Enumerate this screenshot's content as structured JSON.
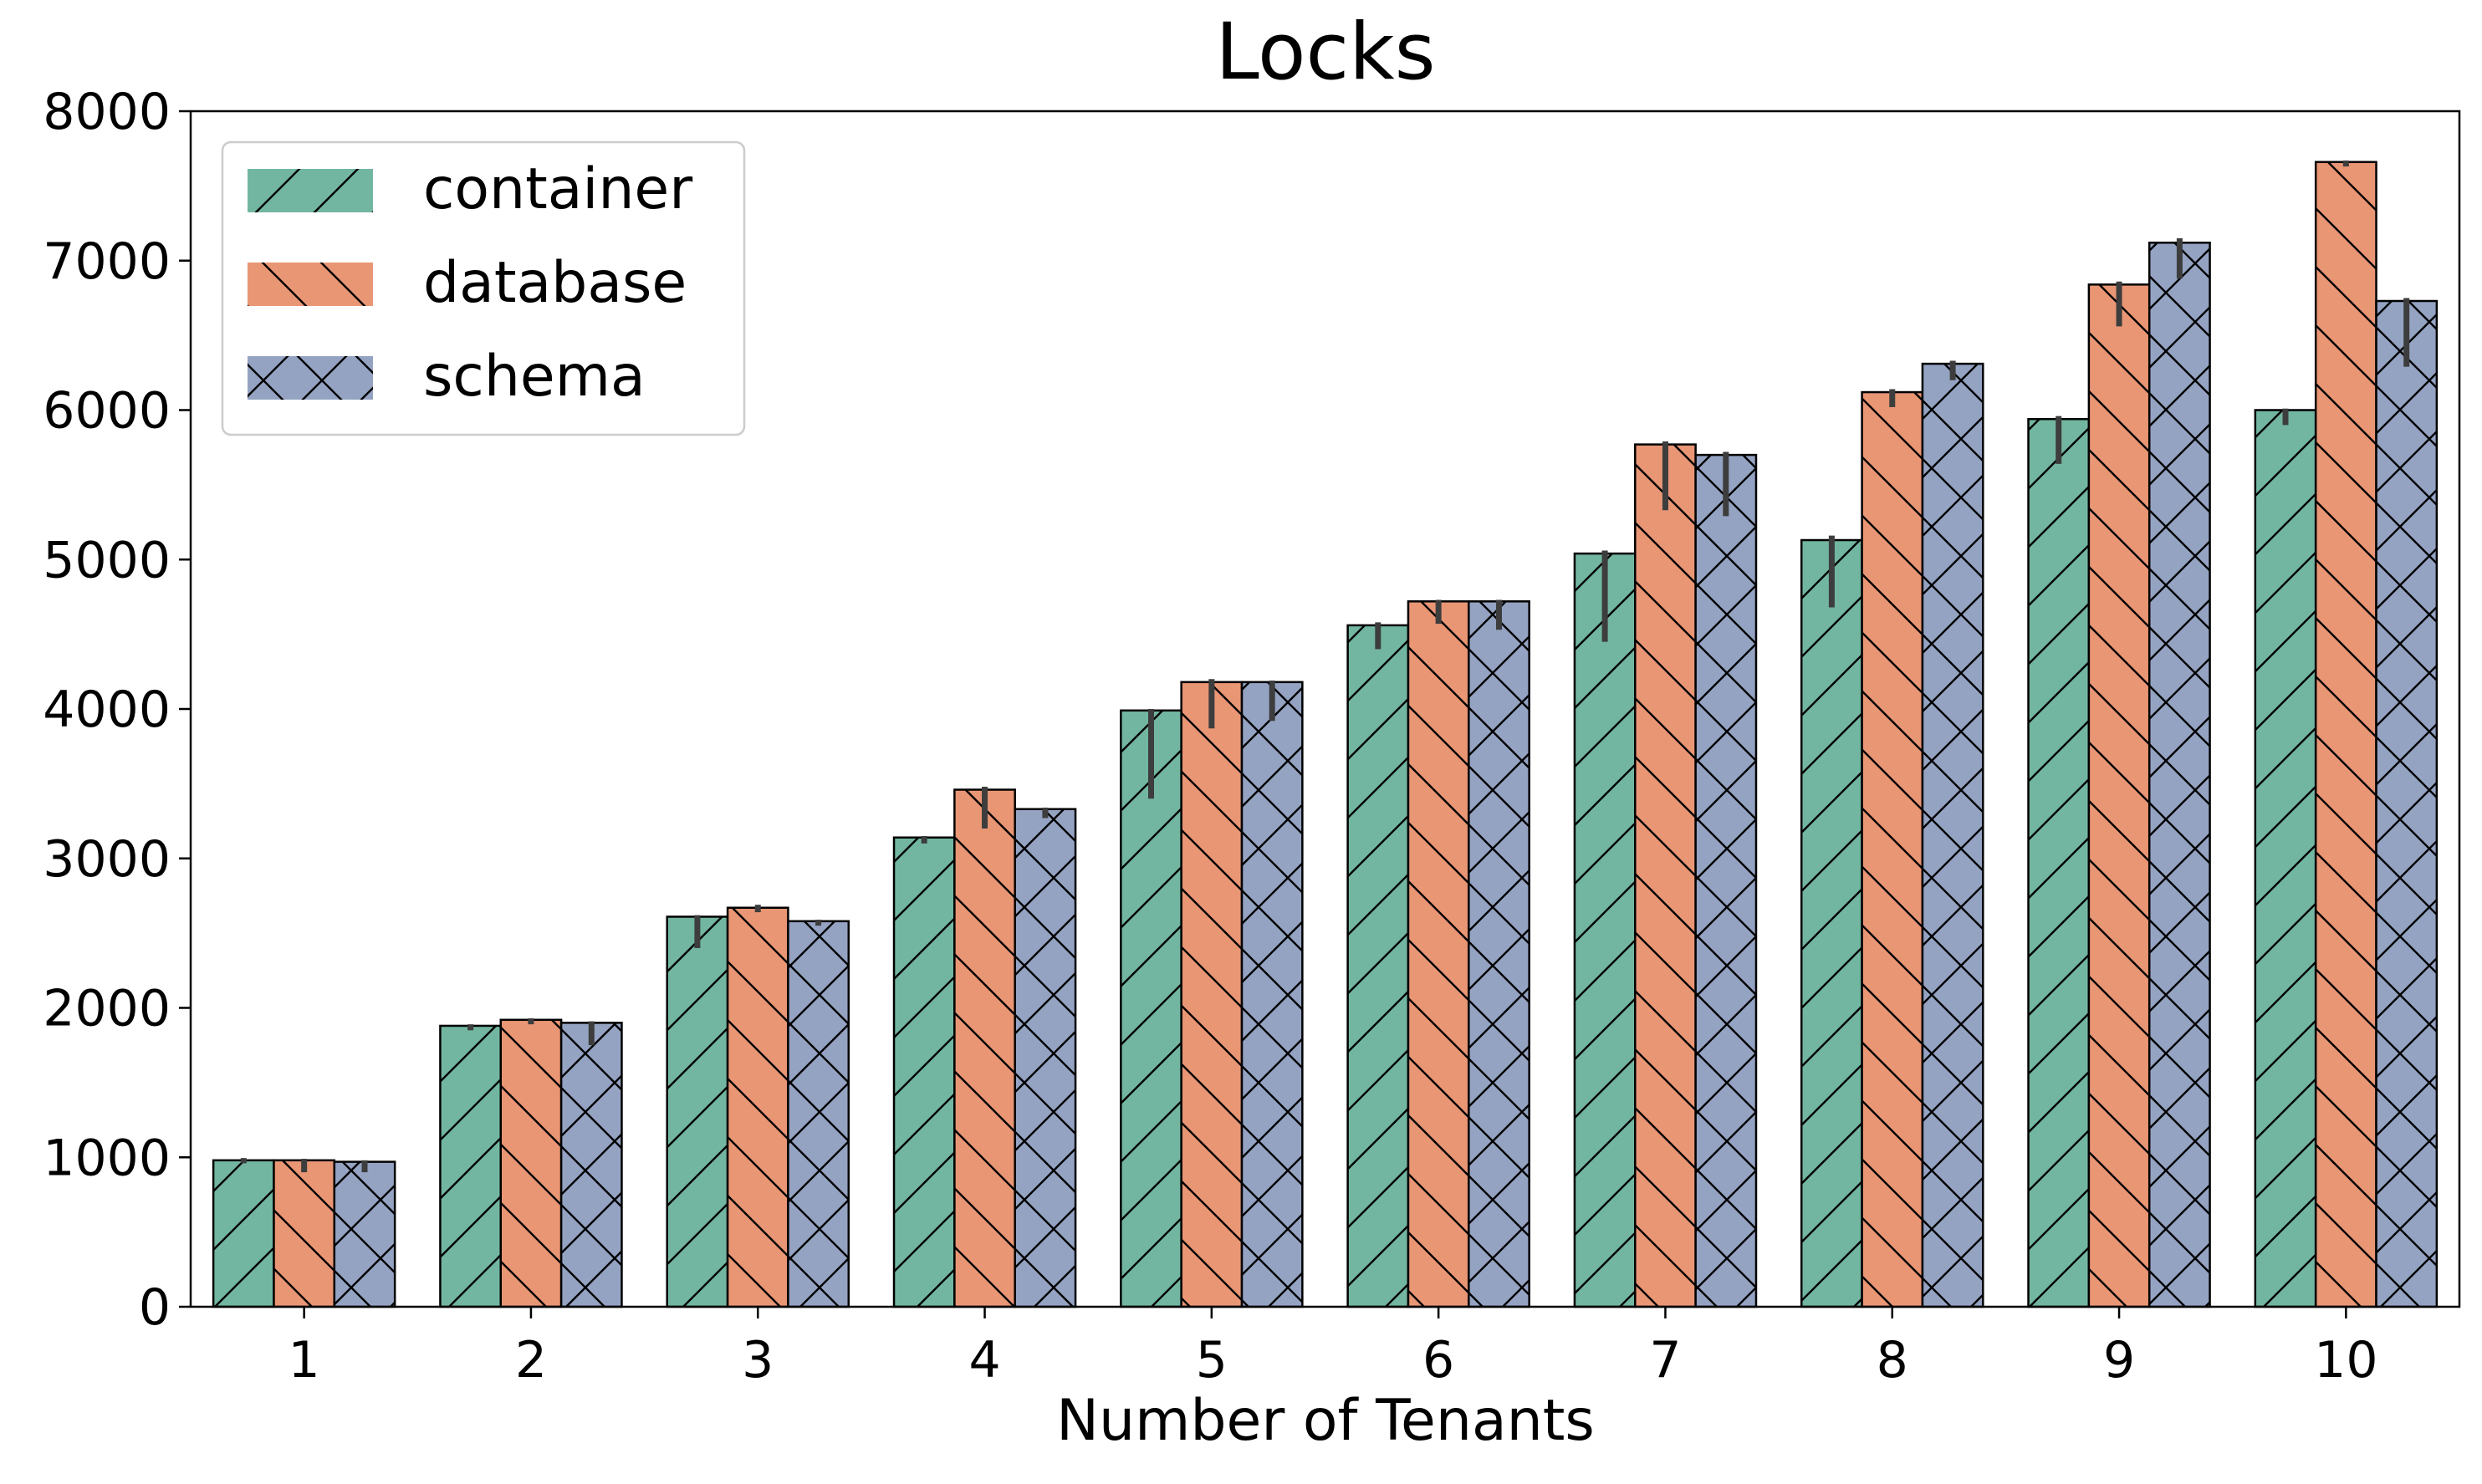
{
  "chart_data": {
    "type": "bar",
    "title": "Locks",
    "xlabel": "Number of Tenants",
    "ylabel": "",
    "categories": [
      "1",
      "2",
      "3",
      "4",
      "5",
      "6",
      "7",
      "8",
      "9",
      "10"
    ],
    "ylim": [
      0,
      8000
    ],
    "yticks": [
      0,
      1000,
      2000,
      3000,
      4000,
      5000,
      6000,
      7000,
      8000
    ],
    "yticklabels": [
      "0",
      "1000",
      "2000",
      "3000",
      "4000",
      "5000",
      "6000",
      "7000",
      "8000"
    ],
    "grid": false,
    "legend_position": "top-left",
    "series": [
      {
        "name": "container",
        "color": "#72b6a1",
        "hatch": "forward-diagonal",
        "values": [
          980,
          1880,
          2610,
          3140,
          3990,
          4560,
          5040,
          5130,
          5940,
          6000
        ],
        "err_low": [
          960,
          1850,
          2400,
          3100,
          3400,
          4400,
          4450,
          4680,
          5640,
          5900
        ],
        "err_high": [
          995,
          1890,
          2620,
          3150,
          4000,
          4580,
          5060,
          5160,
          5960,
          6010
        ]
      },
      {
        "name": "database",
        "color": "#e99675",
        "hatch": "back-diagonal",
        "values": [
          980,
          1920,
          2670,
          3460,
          4180,
          4720,
          5770,
          6120,
          6840,
          7660
        ],
        "err_low": [
          900,
          1890,
          2640,
          3200,
          3870,
          4570,
          5330,
          6020,
          6560,
          7630
        ],
        "err_high": [
          990,
          1930,
          2690,
          3480,
          4200,
          4730,
          5790,
          6140,
          6860,
          7670
        ]
      },
      {
        "name": "schema",
        "color": "#95a3c3",
        "hatch": "cross",
        "values": [
          970,
          1900,
          2580,
          3330,
          4180,
          4720,
          5700,
          6310,
          7120,
          6730
        ],
        "err_low": [
          900,
          1750,
          2550,
          3270,
          3920,
          4530,
          5290,
          6200,
          6880,
          6290
        ],
        "err_high": [
          980,
          1910,
          2590,
          3340,
          4190,
          4730,
          5720,
          6330,
          7150,
          6750
        ]
      }
    ]
  }
}
